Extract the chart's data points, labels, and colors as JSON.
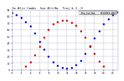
{
  "title": "So Alti Combi  Sun Alt/Az  Traj & I..O",
  "legend_label_blue": "HOriz_Surf_Rad",
  "legend_label_red": "INCIDENCE_ANG",
  "color_blue": "#0000cc",
  "color_red": "#cc0000",
  "bg_color": "#ffffff",
  "plot_bg_color": "#ffffff",
  "grid_color": "#aaaacc",
  "title_color": "#000000",
  "title_fontsize": 3.2,
  "tick_color": "#000000",
  "tick_fontsize": 2.5,
  "ylim": [
    0,
    90
  ],
  "xlim": [
    0,
    23
  ],
  "yticks": [
    0,
    10,
    20,
    30,
    40,
    50,
    60,
    70,
    80,
    90
  ],
  "ytick_labels": [
    "0",
    "10",
    "20",
    "30",
    "40",
    "50",
    "60",
    "70",
    "80",
    "90"
  ],
  "xticks": [
    0,
    2,
    4,
    6,
    8,
    10,
    12,
    14,
    16,
    18,
    20,
    22
  ],
  "sun_altitude_x": [
    0,
    1,
    2,
    3,
    4,
    5,
    6,
    7,
    8,
    9,
    10,
    11,
    12,
    13,
    14,
    15,
    16,
    17,
    18,
    19,
    20,
    21,
    22,
    23
  ],
  "sun_altitude_y": [
    85,
    82,
    78,
    72,
    65,
    55,
    42,
    30,
    20,
    12,
    6,
    3,
    2,
    3,
    7,
    14,
    24,
    35,
    47,
    58,
    68,
    76,
    82,
    86
  ],
  "sun_incidence_x": [
    3,
    4,
    5,
    6,
    7,
    8,
    9,
    10,
    11,
    12,
    13,
    14,
    15,
    16,
    17,
    18,
    19,
    20
  ],
  "sun_incidence_y": [
    5,
    12,
    22,
    35,
    48,
    60,
    68,
    72,
    74,
    74,
    71,
    66,
    58,
    48,
    36,
    24,
    13,
    5
  ],
  "marker_size": 1.0
}
